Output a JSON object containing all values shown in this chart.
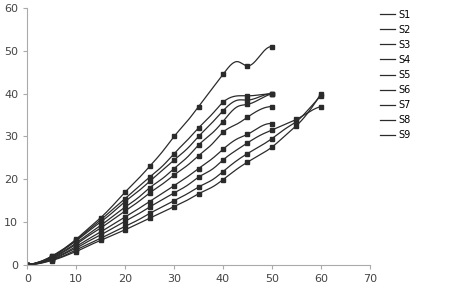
{
  "series": {
    "S1": {
      "x": [
        0,
        1,
        2,
        3,
        4,
        5,
        6,
        7,
        8,
        10,
        12,
        15,
        18,
        20,
        23,
        25,
        28,
        30,
        33,
        35,
        38,
        40,
        43,
        45,
        48,
        50
      ],
      "y": [
        0,
        0.2,
        0.5,
        0.9,
        1.4,
        2.0,
        2.7,
        3.4,
        4.2,
        6.0,
        8.0,
        11.0,
        14.5,
        17.0,
        20.5,
        23.0,
        27.0,
        30.0,
        34.0,
        37.0,
        41.5,
        44.5,
        47.5,
        46.5,
        49.5,
        51.0
      ]
    },
    "S2": {
      "x": [
        0,
        1,
        2,
        3,
        4,
        5,
        6,
        7,
        8,
        10,
        12,
        15,
        18,
        20,
        23,
        25,
        28,
        30,
        33,
        35,
        38,
        40,
        43,
        45,
        48,
        50
      ],
      "y": [
        0,
        0.2,
        0.5,
        0.9,
        1.4,
        2.0,
        2.6,
        3.3,
        4.1,
        5.8,
        7.7,
        10.5,
        13.5,
        15.5,
        18.5,
        20.5,
        23.5,
        26.0,
        29.5,
        32.0,
        35.5,
        38.0,
        39.5,
        39.5,
        39.8,
        40.0
      ]
    },
    "S3": {
      "x": [
        0,
        1,
        2,
        3,
        4,
        5,
        6,
        7,
        8,
        10,
        12,
        15,
        18,
        20,
        23,
        25,
        28,
        30,
        33,
        35,
        38,
        40,
        43,
        45,
        48,
        50
      ],
      "y": [
        0,
        0.2,
        0.5,
        0.8,
        1.3,
        1.9,
        2.5,
        3.2,
        4.0,
        5.6,
        7.4,
        10.0,
        12.8,
        14.8,
        17.5,
        19.5,
        22.5,
        24.5,
        27.5,
        30.0,
        33.5,
        36.0,
        38.5,
        38.5,
        39.5,
        40.0
      ]
    },
    "S4": {
      "x": [
        0,
        1,
        2,
        3,
        4,
        5,
        6,
        7,
        8,
        10,
        12,
        15,
        18,
        20,
        23,
        25,
        28,
        30,
        33,
        35,
        38,
        40,
        43,
        45,
        48,
        50
      ],
      "y": [
        0,
        0.15,
        0.4,
        0.75,
        1.2,
        1.7,
        2.3,
        2.9,
        3.6,
        5.1,
        6.8,
        9.2,
        11.8,
        13.5,
        16.0,
        18.0,
        20.5,
        22.5,
        25.5,
        28.0,
        31.0,
        33.5,
        37.0,
        37.5,
        39.0,
        40.0
      ]
    },
    "S5": {
      "x": [
        0,
        1,
        2,
        3,
        4,
        5,
        6,
        7,
        8,
        10,
        12,
        15,
        18,
        20,
        23,
        25,
        28,
        30,
        33,
        35,
        38,
        40,
        43,
        45,
        48,
        50
      ],
      "y": [
        0,
        0.15,
        0.4,
        0.7,
        1.1,
        1.6,
        2.1,
        2.7,
        3.4,
        4.8,
        6.4,
        8.6,
        11.0,
        12.6,
        15.0,
        16.8,
        19.2,
        21.0,
        23.5,
        25.5,
        28.5,
        31.0,
        33.0,
        34.5,
        36.5,
        37.0
      ]
    },
    "S6": {
      "x": [
        0,
        1,
        2,
        3,
        4,
        5,
        6,
        7,
        8,
        10,
        12,
        15,
        18,
        20,
        23,
        25,
        28,
        30,
        33,
        35,
        38,
        40,
        43,
        45,
        48,
        50
      ],
      "y": [
        0,
        0.1,
        0.3,
        0.6,
        1.0,
        1.4,
        1.9,
        2.4,
        3.0,
        4.3,
        5.7,
        7.7,
        9.8,
        11.2,
        13.3,
        14.8,
        17.0,
        18.5,
        20.8,
        22.5,
        25.0,
        27.0,
        29.5,
        30.5,
        32.5,
        33.0
      ]
    },
    "S7": {
      "x": [
        0,
        1,
        2,
        3,
        4,
        5,
        6,
        7,
        8,
        10,
        12,
        15,
        18,
        20,
        23,
        25,
        28,
        30,
        33,
        35,
        38,
        40,
        43,
        45,
        48,
        50,
        53,
        55,
        58,
        60
      ],
      "y": [
        0,
        0.1,
        0.3,
        0.55,
        0.9,
        1.3,
        1.7,
        2.2,
        2.8,
        3.9,
        5.2,
        7.0,
        8.9,
        10.2,
        12.1,
        13.5,
        15.5,
        16.8,
        18.8,
        20.5,
        22.5,
        24.5,
        27.0,
        28.5,
        30.5,
        31.5,
        33.0,
        34.0,
        36.0,
        37.0
      ]
    },
    "S8": {
      "x": [
        0,
        1,
        2,
        3,
        4,
        5,
        6,
        7,
        8,
        10,
        12,
        15,
        18,
        20,
        23,
        25,
        28,
        30,
        33,
        35,
        38,
        40,
        43,
        45,
        48,
        50,
        53,
        55,
        58,
        60
      ],
      "y": [
        0,
        0.1,
        0.25,
        0.5,
        0.8,
        1.1,
        1.5,
        1.9,
        2.4,
        3.5,
        4.6,
        6.2,
        7.9,
        9.0,
        10.7,
        12.0,
        13.8,
        15.0,
        16.8,
        18.2,
        20.0,
        21.8,
        24.5,
        26.0,
        28.0,
        29.5,
        32.0,
        33.5,
        37.0,
        39.5
      ]
    },
    "S9": {
      "x": [
        0,
        1,
        2,
        3,
        4,
        5,
        6,
        7,
        8,
        10,
        12,
        15,
        18,
        20,
        23,
        25,
        28,
        30,
        33,
        35,
        38,
        40,
        43,
        45,
        48,
        50,
        53,
        55,
        58,
        60
      ],
      "y": [
        0,
        0.08,
        0.22,
        0.42,
        0.7,
        1.0,
        1.35,
        1.75,
        2.2,
        3.1,
        4.2,
        5.7,
        7.2,
        8.2,
        9.8,
        10.9,
        12.5,
        13.6,
        15.3,
        16.6,
        18.3,
        19.9,
        22.5,
        24.0,
        26.0,
        27.5,
        30.5,
        32.5,
        36.5,
        40.0
      ]
    }
  },
  "marker_x_S1": [
    0,
    5,
    10,
    15,
    20,
    25,
    30,
    35,
    40,
    50
  ],
  "marker_x_S2": [
    0,
    5,
    10,
    15,
    20,
    25,
    30,
    35,
    40,
    45,
    50
  ],
  "marker_x_others": [
    0,
    5,
    10,
    15,
    20,
    25,
    30,
    35,
    40,
    45,
    50,
    55,
    60
  ],
  "color": "#2b2b2b",
  "xlim": [
    0,
    70
  ],
  "ylim": [
    0,
    60
  ],
  "xticks": [
    0,
    10,
    20,
    30,
    40,
    50,
    60,
    70
  ],
  "yticks": [
    0,
    10,
    20,
    30,
    40,
    50,
    60
  ],
  "markersize": 3.5,
  "linewidth": 0.9
}
